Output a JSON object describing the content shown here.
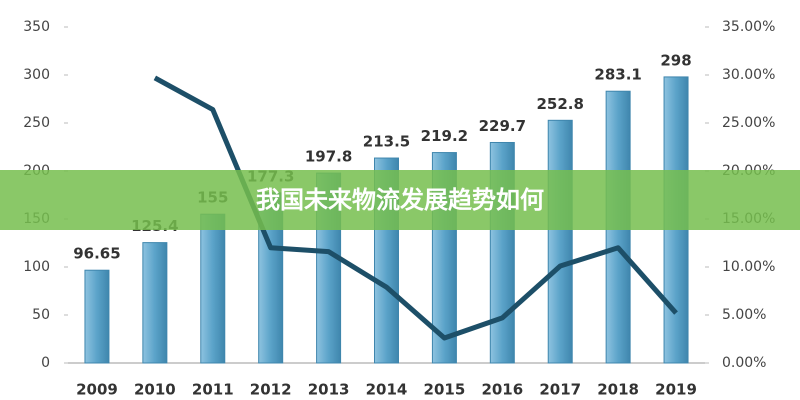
{
  "chart_data": {
    "type": "bar-line",
    "title": "我国未来物流发展趋势如何",
    "categories": [
      "2009",
      "2010",
      "2011",
      "2012",
      "2013",
      "2014",
      "2015",
      "2016",
      "2017",
      "2018",
      "2019"
    ],
    "series": [
      {
        "type": "bar",
        "color": "#5ba3c9",
        "values": [
          96.65,
          125.4,
          155,
          177.3,
          197.8,
          213.5,
          219.2,
          229.7,
          252.8,
          283.1,
          298
        ]
      },
      {
        "type": "line",
        "axis": "y2",
        "color": "#1d4f68",
        "values": [
          null,
          29.7,
          26.4,
          12.0,
          11.6,
          7.9,
          2.6,
          4.7,
          10.1,
          12.0,
          5.2
        ]
      }
    ],
    "ylim": [
      0,
      350
    ],
    "yticks": [
      0,
      50,
      100,
      150,
      200,
      250,
      300,
      350
    ],
    "y2lim": [
      0,
      35
    ],
    "y2ticks": [
      {
        "value": 0,
        "label": "0.00%"
      },
      {
        "value": 5,
        "label": "5.00%"
      },
      {
        "value": 10,
        "label": "10.00%"
      },
      {
        "value": 15,
        "label": "15.00%"
      },
      {
        "value": 20,
        "label": "20.00%"
      },
      {
        "value": 25,
        "label": "25.00%"
      },
      {
        "value": 30,
        "label": "30.00%"
      },
      {
        "value": 35,
        "label": "35.00%"
      }
    ]
  }
}
